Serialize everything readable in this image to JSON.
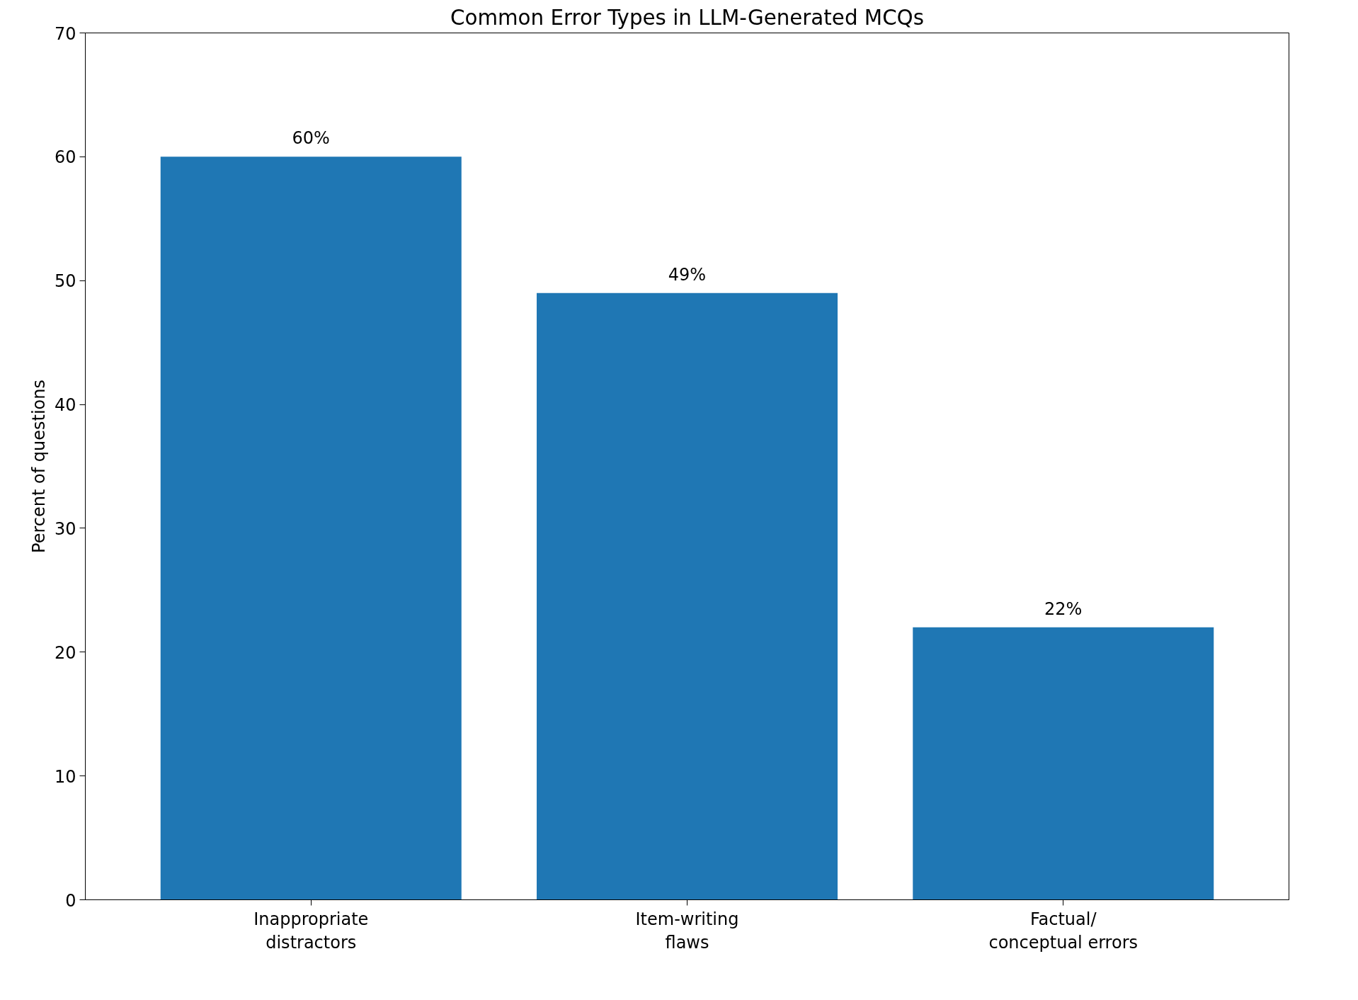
{
  "chart_data": {
    "type": "bar",
    "title": "Common Error Types in LLM-Generated MCQs",
    "ylabel": "Percent of questions",
    "categories": [
      "Inappropriate\ndistractors",
      "Item-writing\nflaws",
      "Factual/\nconceptual errors"
    ],
    "values": [
      60,
      49,
      22
    ],
    "value_labels": [
      "60%",
      "49%",
      "22%"
    ],
    "color": "#1f77b4",
    "ylim": [
      0,
      70
    ],
    "yticks": [
      0,
      10,
      20,
      30,
      40,
      50,
      60,
      70
    ],
    "grid": false
  }
}
